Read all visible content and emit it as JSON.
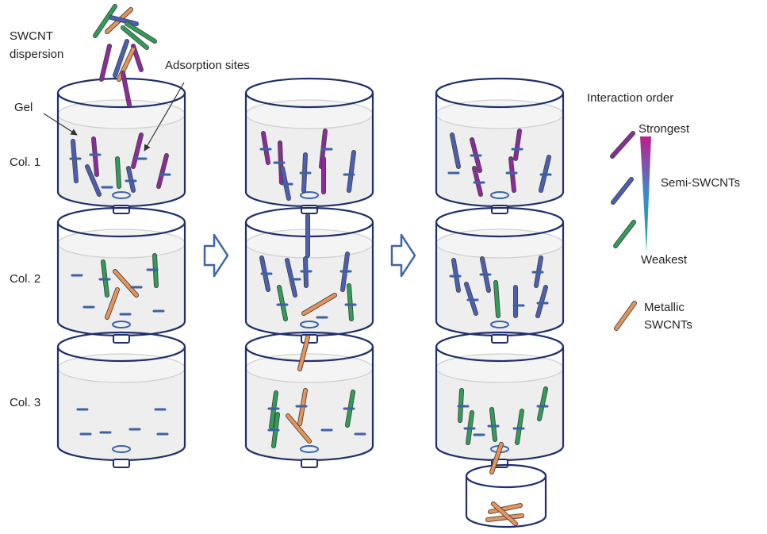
{
  "labels": {
    "swcnt_dispersion": [
      "SWCNT",
      "dispersion"
    ],
    "adsorption_sites": "Adsorption sites",
    "gel": "Gel",
    "col1": "Col. 1",
    "col2": "Col. 2",
    "col3": "Col. 3"
  },
  "legend": {
    "title": "Interaction order",
    "strongest": "Strongest",
    "semi": "Semi-SWCNTs",
    "weakest": "Weakest",
    "metallic": [
      "Metallic",
      "SWCNTs"
    ]
  },
  "colors": {
    "outline": "#1f2f6b",
    "purple": "#8e2aa0",
    "blue": "#4a5fb5",
    "green": "#2f9e57",
    "orange": "#e8935a",
    "gel": "#eeeeee",
    "arrow": "#3f64a8",
    "site": "#3a63a6"
  },
  "icons": {
    "process_arrow": "hollow-right-arrow",
    "gradient": "wedge-gradient-purple-blue-green"
  }
}
